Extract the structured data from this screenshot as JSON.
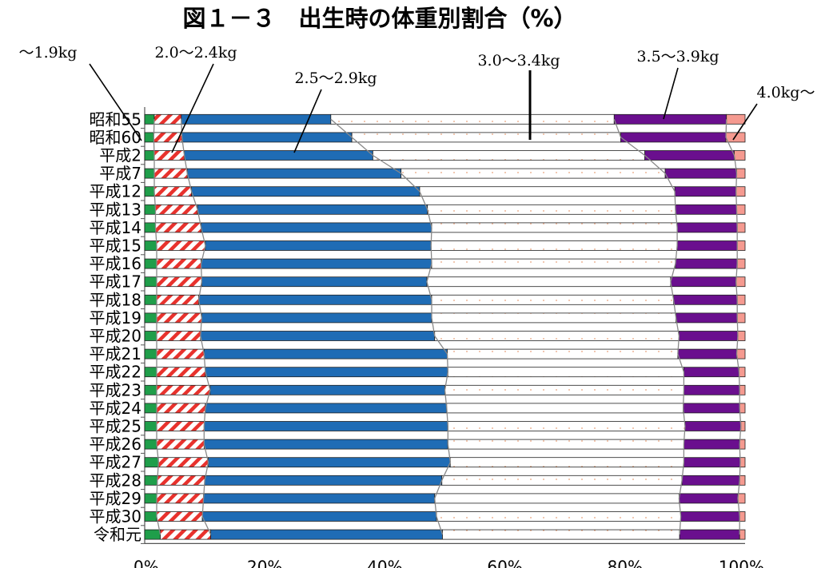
{
  "chart_data": {
    "type": "bar",
    "orientation": "horizontal",
    "stacked": true,
    "normalized": true,
    "title": "図１－３　出生時の体重別割合（%）",
    "categories": [
      "昭和55",
      "昭和60",
      "平成2",
      "平成7",
      "平成12",
      "平成13",
      "平成14",
      "平成15",
      "平成16",
      "平成17",
      "平成18",
      "平成19",
      "平成20",
      "平成21",
      "平成22",
      "平成23",
      "平成24",
      "平成25",
      "平成26",
      "平成27",
      "平成28",
      "平成29",
      "平成30",
      "令和元"
    ],
    "series": [
      {
        "name": "～1.9kg",
        "color": "#1f9e4a",
        "pattern": "solid",
        "values": [
          1.6,
          1.5,
          1.6,
          1.6,
          1.6,
          1.8,
          1.8,
          2.0,
          2.0,
          2.0,
          2.0,
          2.0,
          2.0,
          2.0,
          2.0,
          2.0,
          2.0,
          2.0,
          2.0,
          2.3,
          2.1,
          2.0,
          2.0,
          2.6
        ]
      },
      {
        "name": "2.0～2.4kg",
        "color": "#e8322d",
        "pattern": "hatch",
        "values": [
          4.5,
          4.7,
          5.0,
          5.5,
          6.2,
          7.0,
          7.6,
          8.1,
          7.4,
          7.5,
          7.0,
          7.5,
          7.3,
          7.9,
          8.1,
          8.9,
          8.1,
          7.9,
          7.9,
          8.3,
          7.9,
          7.8,
          7.6,
          8.4
        ]
      },
      {
        "name": "2.5～2.9kg",
        "color": "#1f6cb5",
        "pattern": "solid",
        "values": [
          24.9,
          28.3,
          31.4,
          35.6,
          38.0,
          38.3,
          38.4,
          37.6,
          38.4,
          37.5,
          38.8,
          38.3,
          39.0,
          40.5,
          40.4,
          39.1,
          40.2,
          40.6,
          40.6,
          40.3,
          39.5,
          38.5,
          39.0,
          38.6
        ]
      },
      {
        "name": "3.0～3.4kg",
        "color": "#ffffff",
        "pattern": "dotted",
        "values": [
          47.2,
          44.8,
          45.3,
          44.0,
          42.5,
          41.3,
          40.9,
          41.0,
          40.6,
          40.6,
          40.3,
          40.7,
          40.7,
          38.4,
          39.3,
          39.8,
          39.4,
          39.5,
          39.3,
          38.9,
          40.0,
          40.7,
          40.7,
          39.5
        ]
      },
      {
        "name": "3.5～3.9kg",
        "color": "#6a0f8e",
        "pattern": "solid",
        "values": [
          18.7,
          17.5,
          14.9,
          11.9,
          10.2,
          10.2,
          10.0,
          10.0,
          10.3,
          10.9,
          10.6,
          10.2,
          9.8,
          9.8,
          9.2,
          9.3,
          9.4,
          9.3,
          9.3,
          9.4,
          9.6,
          9.8,
          9.8,
          10.0
        ]
      },
      {
        "name": "4.0kg～",
        "color": "#f59a90",
        "pattern": "solid",
        "values": [
          3.1,
          3.2,
          1.8,
          1.4,
          1.5,
          1.4,
          1.3,
          1.3,
          1.3,
          1.5,
          1.3,
          1.3,
          1.2,
          1.4,
          1.0,
          0.9,
          0.9,
          0.7,
          0.9,
          0.8,
          0.9,
          1.2,
          0.9,
          0.9
        ]
      }
    ],
    "xlim": [
      0,
      100
    ],
    "xticks": [
      "0%",
      "20%",
      "40%",
      "60%",
      "80%",
      "100%"
    ],
    "xlabel": "",
    "ylabel": "",
    "grid": false,
    "legend": "callout labels above the bars"
  }
}
